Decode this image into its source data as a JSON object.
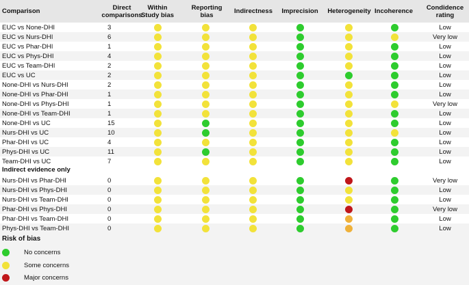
{
  "headers": {
    "comparison": "Comparison",
    "direct": "Direct comparisons",
    "within": "Within Study bias",
    "reporting": "Reporting bias",
    "indirectness": "Indirectness",
    "imprecision": "Imprecision",
    "heterogeneity": "Heterogeneity",
    "incoherence": "Incoherence",
    "confidence": "Condidence rating"
  },
  "colors": {
    "green": "#2ecc2e",
    "yellow": "#f2e23a",
    "orange": "#efb13a",
    "red": "#c0171b",
    "header_bg": "#e6e6e6",
    "shade_bg": "#f3f3f3"
  },
  "rows": [
    {
      "comparison": "EUC vs None-DHI",
      "direct": "3",
      "within": "yellow",
      "reporting": "yellow",
      "indirectness": "yellow",
      "imprecision": "green",
      "heterogeneity": "yellow",
      "incoherence": "green",
      "confidence": "Low"
    },
    {
      "comparison": "EUC vs Nurs-DHI",
      "direct": "6",
      "within": "yellow",
      "reporting": "yellow",
      "indirectness": "yellow",
      "imprecision": "green",
      "heterogeneity": "yellow",
      "incoherence": "yellow",
      "confidence": "Very low"
    },
    {
      "comparison": "EUC vs Phar-DHI",
      "direct": "1",
      "within": "yellow",
      "reporting": "yellow",
      "indirectness": "yellow",
      "imprecision": "green",
      "heterogeneity": "yellow",
      "incoherence": "green",
      "confidence": "Low"
    },
    {
      "comparison": "EUC vs Phys-DHI",
      "direct": "4",
      "within": "yellow",
      "reporting": "yellow",
      "indirectness": "yellow",
      "imprecision": "green",
      "heterogeneity": "yellow",
      "incoherence": "green",
      "confidence": "Low"
    },
    {
      "comparison": "EUC vs Team-DHI",
      "direct": "2",
      "within": "yellow",
      "reporting": "yellow",
      "indirectness": "yellow",
      "imprecision": "green",
      "heterogeneity": "yellow",
      "incoherence": "green",
      "confidence": "Low"
    },
    {
      "comparison": "EUC vs UC",
      "direct": "2",
      "within": "yellow",
      "reporting": "yellow",
      "indirectness": "yellow",
      "imprecision": "green",
      "heterogeneity": "green",
      "incoherence": "green",
      "confidence": "Low"
    },
    {
      "comparison": "None-DHI vs Nurs-DHI",
      "direct": "2",
      "within": "yellow",
      "reporting": "yellow",
      "indirectness": "yellow",
      "imprecision": "green",
      "heterogeneity": "yellow",
      "incoherence": "green",
      "confidence": "Low"
    },
    {
      "comparison": "None-DHI vs Phar-DHI",
      "direct": "1",
      "within": "yellow",
      "reporting": "yellow",
      "indirectness": "yellow",
      "imprecision": "green",
      "heterogeneity": "yellow",
      "incoherence": "green",
      "confidence": "Low"
    },
    {
      "comparison": "None-DHI vs Phys-DHI",
      "direct": "1",
      "within": "yellow",
      "reporting": "yellow",
      "indirectness": "yellow",
      "imprecision": "green",
      "heterogeneity": "yellow",
      "incoherence": "yellow",
      "confidence": "Very low"
    },
    {
      "comparison": "None-DHI vs Team-DHI",
      "direct": "1",
      "within": "yellow",
      "reporting": "yellow",
      "indirectness": "yellow",
      "imprecision": "green",
      "heterogeneity": "yellow",
      "incoherence": "green",
      "confidence": "Low"
    },
    {
      "comparison": "None-DHI vs UC",
      "direct": "15",
      "within": "yellow",
      "reporting": "green",
      "indirectness": "yellow",
      "imprecision": "green",
      "heterogeneity": "yellow",
      "incoherence": "green",
      "confidence": "Low"
    },
    {
      "comparison": "Nurs-DHI vs UC",
      "direct": "10",
      "within": "yellow",
      "reporting": "green",
      "indirectness": "yellow",
      "imprecision": "green",
      "heterogeneity": "yellow",
      "incoherence": "yellow",
      "confidence": "Low"
    },
    {
      "comparison": "Phar-DHI vs UC",
      "direct": "4",
      "within": "yellow",
      "reporting": "yellow",
      "indirectness": "yellow",
      "imprecision": "green",
      "heterogeneity": "yellow",
      "incoherence": "green",
      "confidence": "Low"
    },
    {
      "comparison": "Phys-DHI vs UC",
      "direct": "11",
      "within": "yellow",
      "reporting": "green",
      "indirectness": "yellow",
      "imprecision": "green",
      "heterogeneity": "yellow",
      "incoherence": "green",
      "confidence": "Low"
    },
    {
      "comparison": "Team-DHI vs UC",
      "direct": "7",
      "within": "yellow",
      "reporting": "yellow",
      "indirectness": "yellow",
      "imprecision": "green",
      "heterogeneity": "yellow",
      "incoherence": "green",
      "confidence": "Low"
    }
  ],
  "indirect_title": "Indirect evidence only",
  "indirect_rows": [
    {
      "comparison": "Nurs-DHI vs Phar-DHI",
      "direct": "0",
      "within": "yellow",
      "reporting": "yellow",
      "indirectness": "yellow",
      "imprecision": "green",
      "heterogeneity": "red",
      "incoherence": "green",
      "confidence": "Very low"
    },
    {
      "comparison": "Nurs-DHI vs Phys-DHI",
      "direct": "0",
      "within": "yellow",
      "reporting": "yellow",
      "indirectness": "yellow",
      "imprecision": "green",
      "heterogeneity": "yellow",
      "incoherence": "green",
      "confidence": "Low"
    },
    {
      "comparison": "Nurs-DHI vs Team-DHI",
      "direct": "0",
      "within": "yellow",
      "reporting": "yellow",
      "indirectness": "yellow",
      "imprecision": "green",
      "heterogeneity": "yellow",
      "incoherence": "green",
      "confidence": "Low"
    },
    {
      "comparison": "Phar-DHI vs Phys-DHI",
      "direct": "0",
      "within": "yellow",
      "reporting": "yellow",
      "indirectness": "yellow",
      "imprecision": "green",
      "heterogeneity": "red",
      "incoherence": "green",
      "confidence": "Very low"
    },
    {
      "comparison": "Phar-DHI vs Team-DHI",
      "direct": "0",
      "within": "yellow",
      "reporting": "yellow",
      "indirectness": "yellow",
      "imprecision": "green",
      "heterogeneity": "orange",
      "incoherence": "green",
      "confidence": "Low"
    },
    {
      "comparison": "Phys-DHI vs Team-DHI",
      "direct": "0",
      "within": "yellow",
      "reporting": "yellow",
      "indirectness": "yellow",
      "imprecision": "green",
      "heterogeneity": "orange",
      "incoherence": "green",
      "confidence": "Low"
    }
  ],
  "legend": {
    "title": "Risk of bias",
    "items": [
      {
        "color": "green",
        "label": "No concerns"
      },
      {
        "color": "yellow",
        "label": "Some concerns"
      },
      {
        "color": "red",
        "label": "Major concerns"
      }
    ]
  }
}
